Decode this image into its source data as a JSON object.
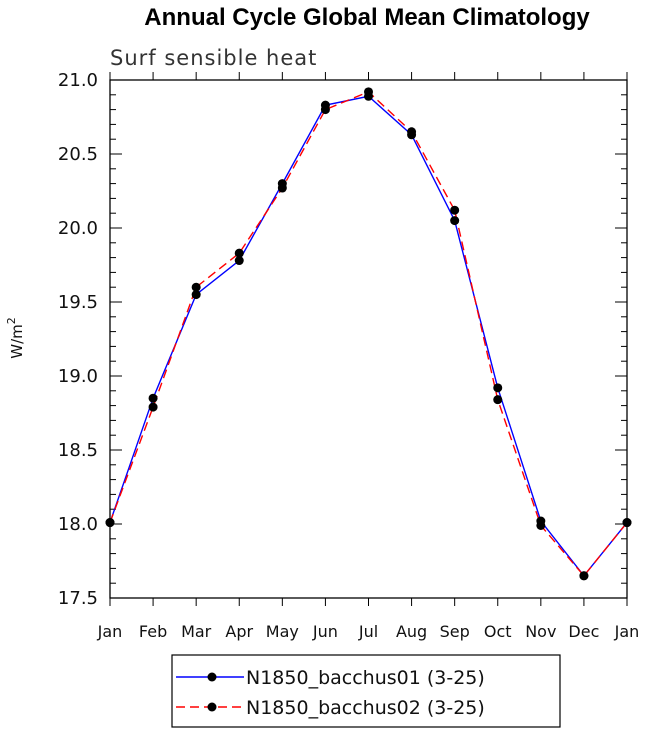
{
  "chart_data": {
    "type": "line",
    "title": "Annual Cycle Global Mean Climatology",
    "subtitle": "Surf sensible heat",
    "ylabel": "W/m",
    "ylabel_sup": "2",
    "xlabel": "",
    "categories": [
      "Jan",
      "Feb",
      "Mar",
      "Apr",
      "May",
      "Jun",
      "Jul",
      "Aug",
      "Sep",
      "Oct",
      "Nov",
      "Dec",
      "Jan"
    ],
    "ylim": [
      17.5,
      21.0
    ],
    "yticks": [
      "17.5",
      "18.0",
      "18.5",
      "19.0",
      "19.5",
      "20.0",
      "20.5",
      "21.0"
    ],
    "grid": false,
    "legend_position": "bottom",
    "series": [
      {
        "name": "N1850_bacchus01 (3-25)",
        "color": "#0000ff",
        "dash": "solid",
        "values": [
          18.01,
          18.85,
          19.55,
          19.78,
          20.3,
          20.83,
          20.89,
          20.63,
          20.05,
          18.92,
          18.02,
          17.65,
          18.01
        ]
      },
      {
        "name": "N1850_bacchus02 (3-25)",
        "color": "#ff0000",
        "dash": "dashed",
        "values": [
          18.01,
          18.79,
          19.6,
          19.83,
          20.27,
          20.8,
          20.92,
          20.65,
          20.12,
          18.84,
          17.99,
          17.65,
          18.01
        ]
      }
    ]
  }
}
